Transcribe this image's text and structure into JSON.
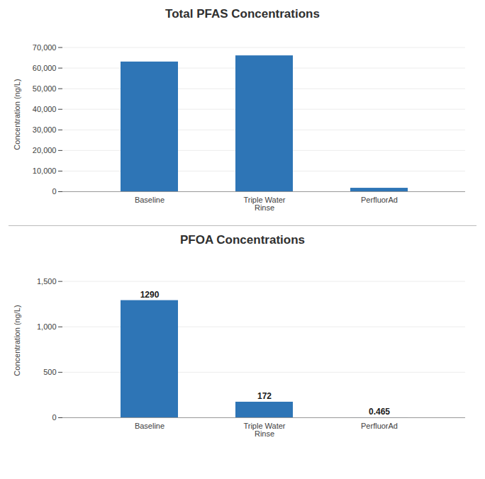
{
  "chart_data": [
    {
      "type": "bar",
      "title": "Total PFAS Concentrations",
      "categories": [
        "Baseline",
        "Triple Water\nRinse",
        "PerfluorAd"
      ],
      "values": [
        63000,
        66000,
        1700
      ],
      "color": "#2E75B6",
      "ylabel": "Concentration (ng/L)",
      "ylim": [
        0,
        75000
      ],
      "yticks": [
        0,
        {
          "value": 10000,
          "label": "10,000"
        },
        {
          "value": 20000,
          "label": "20,000"
        },
        {
          "value": 30000,
          "label": "30,000"
        },
        {
          "value": 40000,
          "label": "40,000"
        },
        {
          "value": 50000,
          "label": "50,000"
        },
        {
          "value": 60000,
          "label": "60,000"
        },
        {
          "value": 70000,
          "label": "70,000"
        }
      ],
      "grid": true
    },
    {
      "type": "bar",
      "title": "PFOA Concentrations",
      "categories": [
        "Baseline",
        "Triple Water\nRinse",
        "PerfluorAd"
      ],
      "values": [
        1290,
        172,
        0.465
      ],
      "color": "#2E75B6",
      "ylabel": "Concentration (ng/L)",
      "ylim": [
        0,
        1700
      ],
      "yticks": [
        0,
        500,
        {
          "value": 1000,
          "label": "1,000"
        },
        {
          "value": 1500,
          "label": "1,500"
        }
      ],
      "grid": true,
      "data_labels": true
    }
  ]
}
